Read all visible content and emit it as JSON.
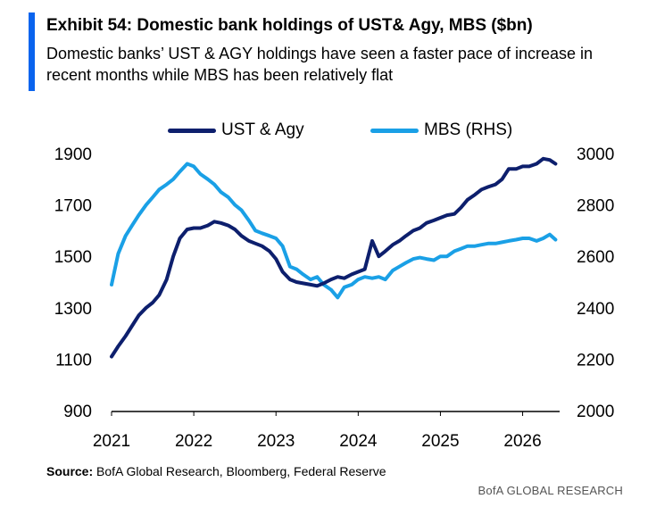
{
  "header": {
    "title": "Exhibit 54: Domestic bank holdings of UST& Agy, MBS ($bn)",
    "subtitle": "Domestic banks’ UST & AGY holdings have seen a faster pace of increase in recent months while MBS has been relatively flat"
  },
  "legend": {
    "series1": "UST & Agy",
    "series2": "MBS (RHS)"
  },
  "footer": {
    "source_label": "Source:",
    "source_text": "BofA Global Research, Bloomberg, Federal Reserve",
    "brand": "BofA GLOBAL RESEARCH"
  },
  "colors": {
    "ust": "#0d1f6d",
    "mbs": "#1aa0e6",
    "accent": "#0a64ee",
    "axis": "#000000"
  },
  "chart_data": {
    "type": "line",
    "title": "Exhibit 54: Domestic bank holdings of UST& Agy, MBS ($bn)",
    "legend_position": "top-center",
    "grid": false,
    "x_ticks": [
      "2021",
      "2022",
      "2023",
      "2024",
      "2025",
      "2026"
    ],
    "xlim": [
      2021.0,
      2026.45
    ],
    "y_left": {
      "lim": [
        900,
        1900
      ],
      "ticks": [
        "900",
        "1100",
        "1300",
        "1500",
        "1700",
        "1900"
      ]
    },
    "y_right": {
      "lim": [
        2000,
        3000
      ],
      "ticks": [
        "2000",
        "2200",
        "2400",
        "2600",
        "2800",
        "3000"
      ]
    },
    "series": [
      {
        "name": "UST & Agy",
        "axis": "left",
        "x": [
          2021.0,
          2021.08,
          2021.17,
          2021.25,
          2021.33,
          2021.42,
          2021.5,
          2021.58,
          2021.67,
          2021.75,
          2021.83,
          2021.92,
          2022.0,
          2022.08,
          2022.17,
          2022.25,
          2022.33,
          2022.42,
          2022.5,
          2022.58,
          2022.67,
          2022.75,
          2022.83,
          2022.92,
          2023.0,
          2023.08,
          2023.17,
          2023.25,
          2023.33,
          2023.42,
          2023.5,
          2023.58,
          2023.67,
          2023.75,
          2023.83,
          2023.92,
          2024.0,
          2024.08,
          2024.17,
          2024.25,
          2024.33,
          2024.42,
          2024.5,
          2024.58,
          2024.67,
          2024.75,
          2024.83,
          2024.92,
          2025.0,
          2025.08,
          2025.17,
          2025.25,
          2025.33,
          2025.42,
          2025.5,
          2025.58,
          2025.67,
          2025.75,
          2025.83,
          2025.92,
          2026.0,
          2026.08,
          2026.17,
          2026.25,
          2026.33,
          2026.4
        ],
        "values": [
          1110,
          1150,
          1190,
          1230,
          1270,
          1300,
          1320,
          1350,
          1410,
          1500,
          1570,
          1605,
          1610,
          1610,
          1620,
          1635,
          1630,
          1620,
          1605,
          1580,
          1560,
          1550,
          1540,
          1520,
          1490,
          1440,
          1410,
          1400,
          1395,
          1390,
          1385,
          1395,
          1410,
          1420,
          1415,
          1430,
          1440,
          1450,
          1560,
          1500,
          1520,
          1545,
          1560,
          1580,
          1600,
          1610,
          1630,
          1640,
          1650,
          1660,
          1665,
          1690,
          1720,
          1740,
          1760,
          1770,
          1780,
          1800,
          1840,
          1840,
          1850,
          1850,
          1860,
          1880,
          1875,
          1860
        ]
      },
      {
        "name": "MBS (RHS)",
        "axis": "right",
        "x": [
          2021.0,
          2021.08,
          2021.17,
          2021.25,
          2021.33,
          2021.42,
          2021.5,
          2021.58,
          2021.67,
          2021.75,
          2021.83,
          2021.92,
          2022.0,
          2022.08,
          2022.17,
          2022.25,
          2022.33,
          2022.42,
          2022.5,
          2022.58,
          2022.67,
          2022.75,
          2022.83,
          2022.92,
          2023.0,
          2023.08,
          2023.17,
          2023.25,
          2023.33,
          2023.42,
          2023.5,
          2023.58,
          2023.67,
          2023.75,
          2023.83,
          2023.92,
          2024.0,
          2024.08,
          2024.17,
          2024.25,
          2024.33,
          2024.42,
          2024.5,
          2024.58,
          2024.67,
          2024.75,
          2024.83,
          2024.92,
          2025.0,
          2025.08,
          2025.17,
          2025.25,
          2025.33,
          2025.42,
          2025.5,
          2025.58,
          2025.67,
          2025.75,
          2025.83,
          2025.92,
          2026.0,
          2026.08,
          2026.17,
          2026.25,
          2026.33,
          2026.4
        ],
        "values": [
          2490,
          2610,
          2680,
          2720,
          2760,
          2800,
          2830,
          2860,
          2880,
          2900,
          2930,
          2960,
          2950,
          2920,
          2900,
          2880,
          2850,
          2830,
          2800,
          2780,
          2740,
          2700,
          2690,
          2680,
          2670,
          2640,
          2560,
          2550,
          2530,
          2510,
          2520,
          2490,
          2470,
          2440,
          2480,
          2490,
          2510,
          2520,
          2515,
          2520,
          2510,
          2545,
          2560,
          2575,
          2590,
          2595,
          2590,
          2585,
          2600,
          2600,
          2620,
          2630,
          2640,
          2640,
          2645,
          2650,
          2650,
          2655,
          2660,
          2665,
          2670,
          2670,
          2660,
          2670,
          2685,
          2665
        ]
      }
    ]
  }
}
